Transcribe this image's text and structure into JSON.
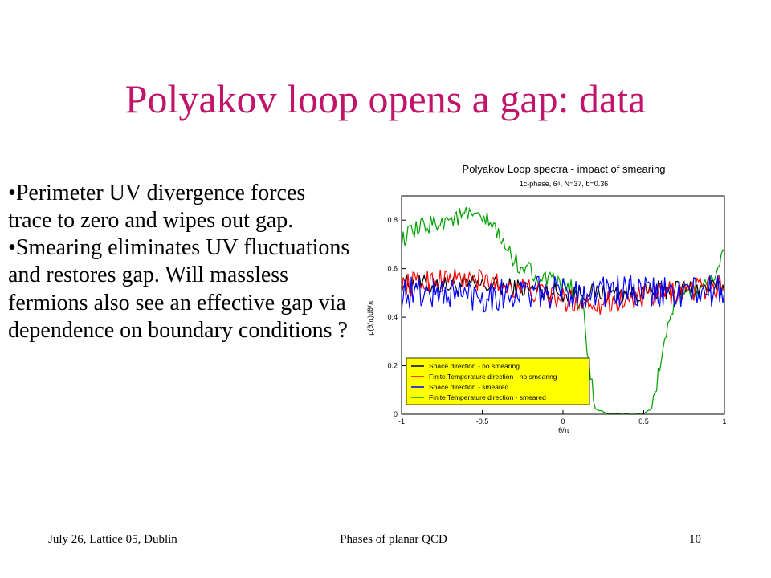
{
  "slide": {
    "title": "Polyakov loop opens a gap: data",
    "bullets": [
      {
        "marker": "•",
        "text": "Perimeter UV divergence forces trace to zero and wipes out gap."
      },
      {
        "marker": "•",
        "text": "Smearing eliminates UV fluctuations and restores gap. Will massless fermions also see an effective gap via dependence on boundary conditions ?"
      }
    ]
  },
  "footer": {
    "left": "July 26, Lattice 05, Dublin",
    "center": "Phases of planar QCD",
    "right": "10"
  },
  "chart_data": {
    "type": "line",
    "title": "Polyakov Loop spectra - impact of smearing",
    "subtitle": "1c-phase, 6⁴, N=37, b=0.36",
    "xlabel": "θ/π",
    "ylabel": "ρ(θ/π)dθ/π",
    "xlim": [
      -1,
      1
    ],
    "ylim": [
      0,
      0.9
    ],
    "xticks": [
      -1,
      -0.5,
      0,
      0.5,
      1
    ],
    "xtick_labels": [
      "-1",
      "-0.5",
      "0",
      "0.5",
      "1"
    ],
    "yticks": [
      0,
      0.2,
      0.4,
      0.6,
      0.8
    ],
    "ytick_labels": [
      "0",
      "0.2",
      "0.4",
      "0.6",
      "0.8"
    ],
    "grid": false,
    "legend_position": "bottom-left",
    "legend_bg": "#ffff00",
    "series": [
      {
        "name": "Space direction - no smearing",
        "color": "#000000",
        "x": [
          -1,
          -0.75,
          -0.5,
          -0.25,
          0,
          0.25,
          0.5,
          0.75,
          1
        ],
        "y": [
          0.54,
          0.53,
          0.53,
          0.52,
          0.5,
          0.5,
          0.5,
          0.52,
          0.52
        ],
        "noise": 0.04
      },
      {
        "name": "Finite Temperature direction - no smearing",
        "color": "#ff0000",
        "x": [
          -1,
          -0.75,
          -0.5,
          -0.25,
          0,
          0.25,
          0.5,
          0.75,
          1
        ],
        "y": [
          0.53,
          0.56,
          0.55,
          0.52,
          0.47,
          0.46,
          0.48,
          0.51,
          0.53
        ],
        "noise": 0.05
      },
      {
        "name": "Space direction - smeared",
        "color": "#0000ff",
        "x": [
          -1,
          -0.75,
          -0.5,
          -0.25,
          0,
          0.25,
          0.5,
          0.75,
          1
        ],
        "y": [
          0.5,
          0.5,
          0.49,
          0.5,
          0.5,
          0.51,
          0.5,
          0.5,
          0.51
        ],
        "noise": 0.07
      },
      {
        "name": "Finite Temperature direction - smeared",
        "color": "#00a000",
        "x": [
          -1,
          -0.9,
          -0.8,
          -0.6,
          -0.45,
          -0.3,
          -0.1,
          0.05,
          0.12,
          0.15,
          0.2,
          0.3,
          0.5,
          0.55,
          0.6,
          0.65,
          0.7,
          0.8,
          0.9,
          1
        ],
        "y": [
          0.72,
          0.76,
          0.79,
          0.82,
          0.79,
          0.63,
          0.55,
          0.52,
          0.45,
          0.28,
          0.02,
          0.0,
          0.0,
          0.02,
          0.2,
          0.38,
          0.46,
          0.5,
          0.54,
          0.66
        ],
        "noise": 0.04
      }
    ]
  }
}
